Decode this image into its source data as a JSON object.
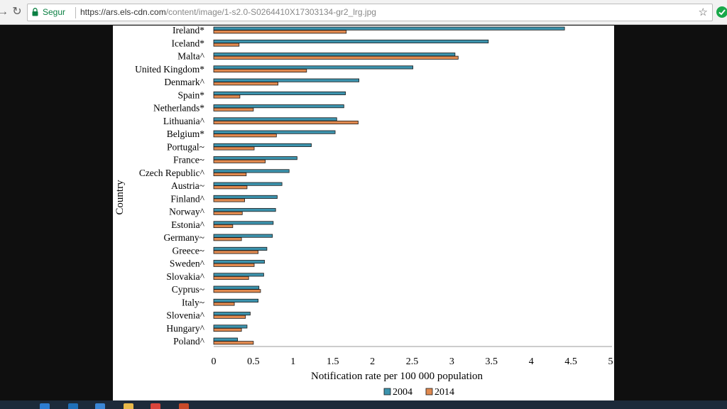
{
  "browser": {
    "secure_label": "Segur",
    "url_host": "https://ars.els-cdn.com",
    "url_path": "/content/image/1-s2.0-S0264410X17303134-gr2_lrg.jpg",
    "star_icon": "bookmark-star-icon"
  },
  "colors": {
    "series_2004": "#3c93ad",
    "series_2014": "#e0894f",
    "axis": "#999999"
  },
  "chart_data": {
    "type": "bar",
    "orientation": "horizontal",
    "ylabel": "Country",
    "xlabel": "Notification rate per 100 000 population",
    "xlim": [
      0,
      5
    ],
    "xticks": [
      "0",
      "0.5",
      "1",
      "1.5",
      "2",
      "2.5",
      "3",
      "3.5",
      "4",
      "4.5",
      "5"
    ],
    "legend_position": "bottom-center",
    "categories": [
      "Ireland*",
      "Iceland*",
      "Malta^",
      "United Kingdom*",
      "Denmark^",
      "Spain*",
      "Netherlands*",
      "Lithuania^",
      "Belgium*",
      "Portugal~",
      "France~",
      "Czech Republic^",
      "Austria~",
      "Finland^",
      "Norway^",
      "Estonia^",
      "Germany~",
      "Greece~",
      "Sweden^",
      "Slovakia^",
      "Cyprus~",
      "Italy~",
      "Slovenia^",
      "Hungary^",
      "Poland^"
    ],
    "series": [
      {
        "name": "2004",
        "values": [
          4.42,
          3.46,
          3.04,
          2.51,
          1.83,
          1.66,
          1.64,
          1.55,
          1.53,
          1.23,
          1.05,
          0.95,
          0.86,
          0.8,
          0.78,
          0.75,
          0.74,
          0.67,
          0.64,
          0.63,
          0.57,
          0.56,
          0.46,
          0.42,
          0.3
        ]
      },
      {
        "name": "2014",
        "values": [
          1.67,
          0.32,
          3.08,
          1.17,
          0.81,
          0.33,
          0.5,
          1.82,
          0.79,
          0.51,
          0.65,
          0.41,
          0.42,
          0.39,
          0.36,
          0.24,
          0.35,
          0.56,
          0.51,
          0.44,
          0.59,
          0.26,
          0.4,
          0.35,
          0.5
        ]
      }
    ]
  }
}
